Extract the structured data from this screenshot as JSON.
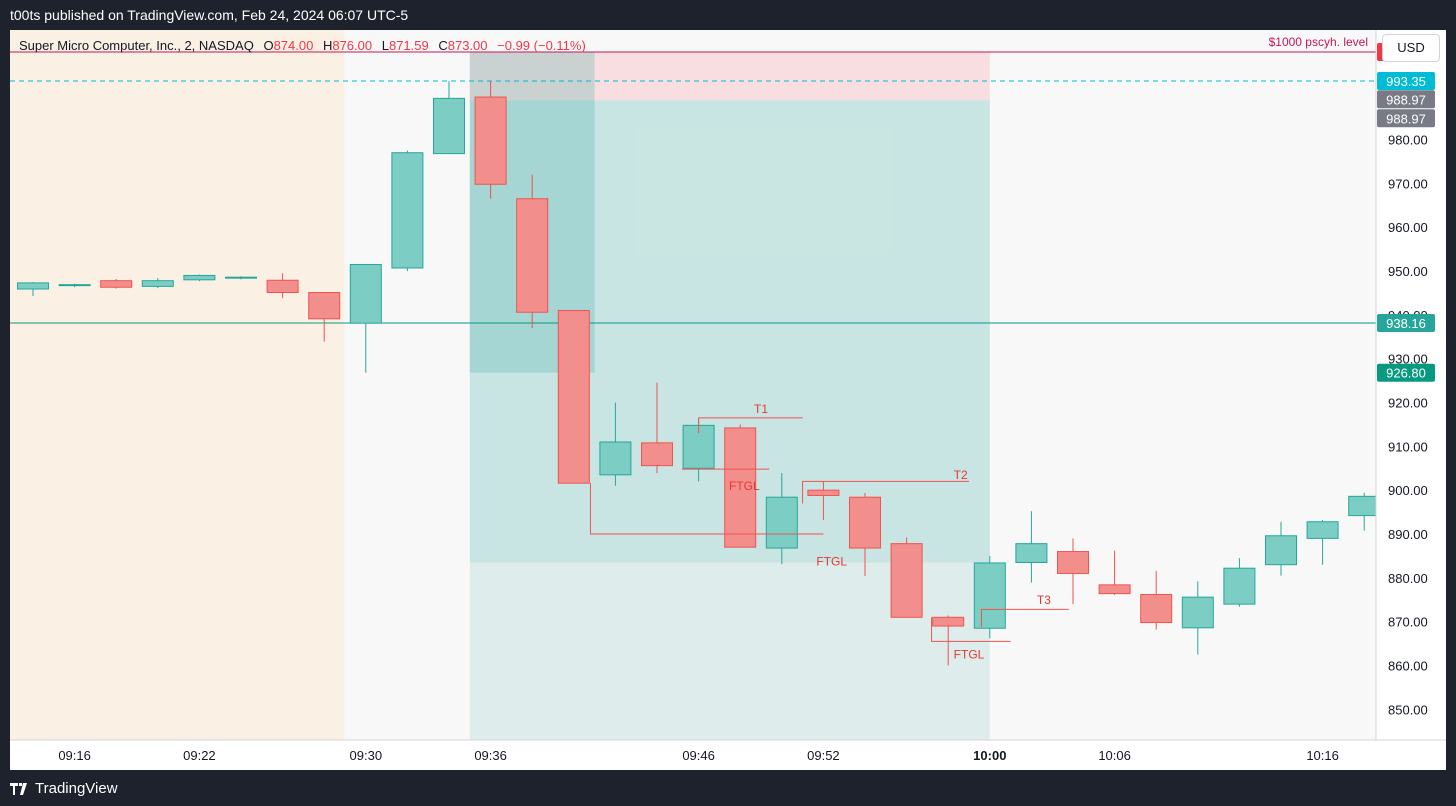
{
  "header": {
    "published": "t00ts published on TradingView.com, Feb 24, 2024 06:07 UTC-5"
  },
  "footer": {
    "brand": "TradingView",
    "logo_icon": "tradingview-logo-icon"
  },
  "toolbar": {
    "currency": "USD"
  },
  "legend": {
    "symbol": "Super Micro Computer, Inc., 2, NASDAQ",
    "o_label": "O",
    "o": "874.00",
    "h_label": "H",
    "h": "876.00",
    "l_label": "L",
    "l": "871.59",
    "c_label": "C",
    "c": "873.00",
    "change": "−0.99 (−0.11%)"
  },
  "colors": {
    "up": "#26a69a",
    "down": "#ef5350",
    "session": "#faf0e4",
    "magenta": "#c2185b",
    "target_zone": "#26a69a",
    "stop_zone": "#f7a1ad",
    "plot_bg": "#f8f8f8"
  },
  "chart_data": {
    "type": "candlestick",
    "title": "Super Micro Computer, Inc., 2, NASDAQ",
    "y_range": [
      843,
      1005
    ],
    "y_ticks": [
      850,
      860,
      870,
      880,
      890,
      900,
      910,
      920,
      930,
      940,
      950,
      960,
      970,
      980
    ],
    "x_ticks": [
      {
        "t": "09:16",
        "bar": 1,
        "bold": false
      },
      {
        "t": "09:22",
        "bar": 4,
        "bold": false
      },
      {
        "t": "09:30",
        "bar": 8,
        "bold": false
      },
      {
        "t": "09:36",
        "bar": 11,
        "bold": false
      },
      {
        "t": "09:46",
        "bar": 16,
        "bold": false
      },
      {
        "t": "09:52",
        "bar": 19,
        "bold": false
      },
      {
        "t": "10:00",
        "bar": 23,
        "bold": true
      },
      {
        "t": "10:06",
        "bar": 26,
        "bold": false
      },
      {
        "t": "10:16",
        "bar": 31,
        "bold": false
      }
    ],
    "candles": [
      {
        "o": 945.9,
        "h": 947.5,
        "l": 944.3,
        "c": 947.3
      },
      {
        "o": 946.7,
        "h": 947.1,
        "l": 946.3,
        "c": 946.9
      },
      {
        "o": 947.8,
        "h": 948.2,
        "l": 946.0,
        "c": 946.3
      },
      {
        "o": 946.5,
        "h": 948.4,
        "l": 946.1,
        "c": 947.8
      },
      {
        "o": 948.0,
        "h": 949.2,
        "l": 947.7,
        "c": 949.0
      },
      {
        "o": 948.5,
        "h": 948.8,
        "l": 948.1,
        "c": 948.6
      },
      {
        "o": 947.9,
        "h": 949.5,
        "l": 943.8,
        "c": 945.1
      },
      {
        "o": 945.1,
        "h": 945.1,
        "l": 933.9,
        "c": 939.1
      },
      {
        "o": 938.1,
        "h": 951.5,
        "l": 926.8,
        "c": 951.5
      },
      {
        "o": 950.7,
        "h": 977.5,
        "l": 950.0,
        "c": 977.0
      },
      {
        "o": 976.8,
        "h": 993.3,
        "l": 976.8,
        "c": 989.4
      },
      {
        "o": 989.7,
        "h": 993.3,
        "l": 966.5,
        "c": 969.8
      },
      {
        "o": 966.5,
        "h": 972.0,
        "l": 937.0,
        "c": 940.6
      },
      {
        "o": 941.0,
        "h": 941.0,
        "l": 901.6,
        "c": 901.6
      },
      {
        "o": 903.5,
        "h": 920.0,
        "l": 901.0,
        "c": 911.0
      },
      {
        "o": 910.8,
        "h": 924.5,
        "l": 903.9,
        "c": 905.6
      },
      {
        "o": 905.0,
        "h": 916.2,
        "l": 902.0,
        "c": 914.8
      },
      {
        "o": 914.2,
        "h": 915.0,
        "l": 887.0,
        "c": 887.0
      },
      {
        "o": 886.8,
        "h": 903.9,
        "l": 883.1,
        "c": 898.4
      },
      {
        "o": 900.0,
        "h": 902.0,
        "l": 893.2,
        "c": 898.8
      },
      {
        "o": 898.4,
        "h": 899.4,
        "l": 880.4,
        "c": 886.8
      },
      {
        "o": 887.8,
        "h": 889.2,
        "l": 871.0,
        "c": 871.0
      },
      {
        "o": 871.0,
        "h": 871.4,
        "l": 860.0,
        "c": 869.0
      },
      {
        "o": 868.5,
        "h": 885.0,
        "l": 866.2,
        "c": 883.4
      },
      {
        "o": 883.5,
        "h": 895.2,
        "l": 878.9,
        "c": 887.8
      },
      {
        "o": 886.0,
        "h": 889.0,
        "l": 874.0,
        "c": 881.0
      },
      {
        "o": 878.4,
        "h": 886.2,
        "l": 876.1,
        "c": 876.4
      },
      {
        "o": 876.2,
        "h": 881.6,
        "l": 868.2,
        "c": 869.8
      },
      {
        "o": 868.6,
        "h": 879.2,
        "l": 862.5,
        "c": 875.6
      },
      {
        "o": 874.0,
        "h": 884.5,
        "l": 873.4,
        "c": 882.2
      },
      {
        "o": 883.0,
        "h": 892.8,
        "l": 880.5,
        "c": 889.6
      },
      {
        "o": 889.0,
        "h": 893.2,
        "l": 883.0,
        "c": 892.8
      },
      {
        "o": 894.2,
        "h": 899.4,
        "l": 890.8,
        "c": 898.6
      }
    ],
    "levels": [
      {
        "price": 999.99,
        "label": "999.99",
        "line": "solid",
        "color": "#c2185b",
        "badge": "#f23645",
        "text": "$1000 pscyh. level"
      },
      {
        "price": 993.35,
        "label": "993.35",
        "line": "dashed",
        "color": "#00bcd4",
        "badge": "#00bcd4"
      },
      {
        "price": 988.97,
        "label": "988.97",
        "badge": "#787b86"
      },
      {
        "price": 988.97,
        "label": "988.97",
        "badge": "#787b86"
      },
      {
        "price": 938.16,
        "label": "938.16",
        "line": "solid",
        "color": "#089981",
        "badge": "#26a69a"
      },
      {
        "price": 926.8,
        "label": "926.80",
        "badge": "#089981"
      }
    ],
    "session_shade": {
      "from_bar": -1,
      "to_bar": 7
    },
    "zones": [
      {
        "name": "stop",
        "from_bar": 10.5,
        "to_bar": 23,
        "top": 1000,
        "bottom": 988.97,
        "color": "#f7a1ad"
      },
      {
        "name": "target",
        "from_bar": 10.5,
        "to_bar": 23,
        "top": 988.97,
        "bottom": 883.5,
        "color": "#26a69a"
      },
      {
        "name": "below",
        "from_bar": 10.5,
        "to_bar": 23,
        "top": 883.5,
        "bottom": 843,
        "color": "#26a69a"
      },
      {
        "name": "position",
        "from_bar": 10.5,
        "to_bar": 13.5,
        "top": 1000,
        "bottom": 926.8,
        "color": "#26a69a"
      }
    ],
    "annotations": [
      {
        "text": "T1",
        "path": [
          [
            16,
            913
          ],
          [
            16,
            916.5
          ],
          [
            18.5,
            916.5
          ]
        ],
        "label_at": [
          17.5,
          918.5
        ]
      },
      {
        "text": "T2",
        "path": [
          [
            18.5,
            897
          ],
          [
            18.5,
            902
          ],
          [
            22.5,
            902
          ]
        ],
        "label_at": [
          22.3,
          903.5
        ]
      },
      {
        "text": "T3",
        "path": [
          [
            22.8,
            868.8
          ],
          [
            22.8,
            872.8
          ],
          [
            24.9,
            872.8
          ]
        ],
        "label_at": [
          24.3,
          875
        ]
      },
      {
        "text": "FTGL",
        "path": [
          [
            15.6,
            904.8
          ],
          [
            17.7,
            904.8
          ]
        ],
        "label_at": [
          17.1,
          901
        ]
      },
      {
        "text": "FTGL",
        "path": [
          [
            18.7,
            888.5
          ],
          [
            18.7,
            888.5
          ]
        ],
        "label_at": [
          19.2,
          883.7
        ]
      },
      {
        "text": "FTGL",
        "path": [
          [
            21.6,
            871
          ],
          [
            21.6,
            865.5
          ],
          [
            23.5,
            865.5
          ]
        ],
        "label_at": [
          22.5,
          862.5
        ]
      },
      {
        "text": "",
        "path": [
          [
            13.4,
            901.6
          ],
          [
            13.4,
            890
          ],
          [
            19.0,
            890
          ]
        ],
        "label_at": null
      }
    ]
  }
}
